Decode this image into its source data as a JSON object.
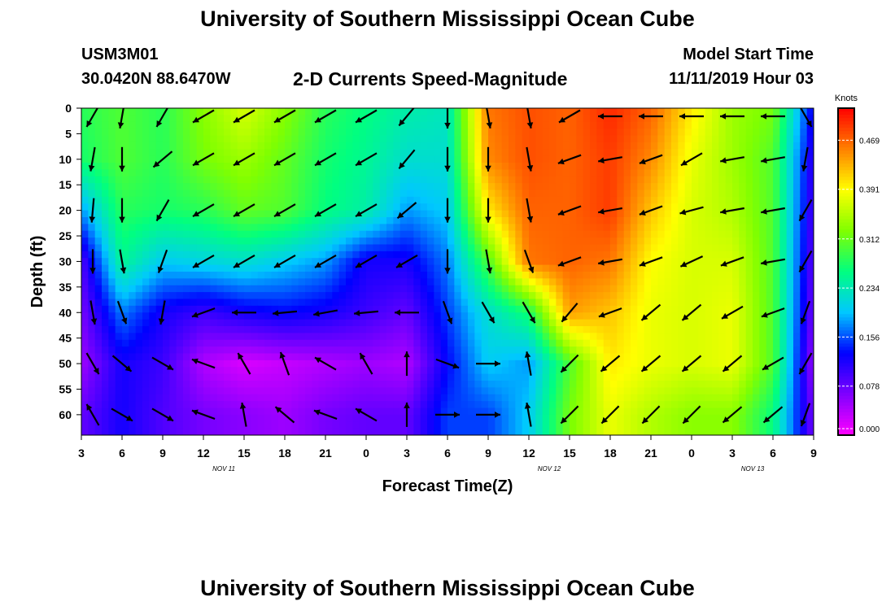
{
  "header": {
    "title": "University of Southern Mississippi Ocean Cube",
    "station_id": "USM3M01",
    "coordinates": "30.0420N 88.6470W",
    "subtitle": "2-D Currents Speed-Magnitude",
    "model_start_label": "Model Start Time",
    "model_start_value": "11/11/2019 Hour 03"
  },
  "footer": {
    "title": "University of Southern Mississippi Ocean Cube"
  },
  "chart_data": {
    "type": "heatmap",
    "title": "2-D Currents Speed-Magnitude",
    "xlabel": "Forecast Time(Z)",
    "ylabel": "Depth (ft)",
    "x_tick_labels": [
      "3",
      "6",
      "9",
      "12",
      "15",
      "18",
      "21",
      "0",
      "3",
      "6",
      "9",
      "12",
      "15",
      "18",
      "21",
      "0",
      "3",
      "6",
      "9"
    ],
    "x_date_labels": [
      {
        "label": "NOV  11",
        "at_tick_index": 3.5
      },
      {
        "label": "NOV  12",
        "at_tick_index": 11.5
      },
      {
        "label": "NOV  13",
        "at_tick_index": 16.5
      }
    ],
    "y_tick_labels": [
      "0",
      "5",
      "10",
      "15",
      "20",
      "25",
      "30",
      "35",
      "40",
      "45",
      "50",
      "55",
      "60"
    ],
    "ylim": [
      0,
      64
    ],
    "y_inverted": true,
    "colorbar": {
      "unit": "Knots",
      "tick_labels": [
        "0.469",
        "0.391",
        "0.312",
        "0.234",
        "0.156",
        "0.078",
        "0.000"
      ],
      "range": [
        0.0,
        0.52
      ],
      "colors": [
        "#ff00ff",
        "#8000ff",
        "#0000ff",
        "#00c8ff",
        "#00ff80",
        "#80ff00",
        "#ffff00",
        "#ff8000",
        "#ff0000"
      ]
    },
    "time_hours": [
      0,
      3,
      6,
      9,
      12,
      15,
      18,
      21,
      24,
      27,
      30,
      33,
      36,
      39,
      42,
      45,
      48,
      51,
      54
    ],
    "depth_ft": [
      0,
      10,
      20,
      30,
      40,
      50,
      60
    ],
    "speed_knots": [
      [
        0.28,
        0.3,
        0.28,
        0.33,
        0.37,
        0.33,
        0.28,
        0.26,
        0.24,
        0.23,
        0.46,
        0.48,
        0.47,
        0.5,
        0.47,
        0.4,
        0.34,
        0.32,
        0.12
      ],
      [
        0.27,
        0.3,
        0.28,
        0.32,
        0.34,
        0.31,
        0.27,
        0.25,
        0.22,
        0.22,
        0.45,
        0.48,
        0.47,
        0.49,
        0.45,
        0.38,
        0.34,
        0.3,
        0.1
      ],
      [
        0.18,
        0.28,
        0.27,
        0.28,
        0.31,
        0.3,
        0.26,
        0.24,
        0.18,
        0.2,
        0.4,
        0.47,
        0.47,
        0.49,
        0.42,
        0.37,
        0.35,
        0.3,
        0.09
      ],
      [
        0.09,
        0.25,
        0.2,
        0.21,
        0.22,
        0.2,
        0.18,
        0.12,
        0.12,
        0.17,
        0.3,
        0.46,
        0.47,
        0.46,
        0.39,
        0.37,
        0.37,
        0.3,
        0.08
      ],
      [
        0.07,
        0.17,
        0.12,
        0.1,
        0.12,
        0.13,
        0.12,
        0.1,
        0.08,
        0.15,
        0.22,
        0.27,
        0.44,
        0.42,
        0.38,
        0.37,
        0.38,
        0.3,
        0.07
      ],
      [
        0.05,
        0.12,
        0.1,
        0.04,
        0.02,
        0.03,
        0.04,
        0.05,
        0.04,
        0.13,
        0.2,
        0.18,
        0.3,
        0.4,
        0.38,
        0.37,
        0.38,
        0.3,
        0.05
      ],
      [
        0.08,
        0.12,
        0.09,
        0.07,
        0.06,
        0.05,
        0.07,
        0.08,
        0.08,
        0.15,
        0.15,
        0.2,
        0.32,
        0.38,
        0.35,
        0.33,
        0.33,
        0.26,
        0.07
      ]
    ],
    "vectors": {
      "description_note": "",
      "angles_deg": [
        [
          120,
          100,
          120,
          150,
          150,
          150,
          150,
          150,
          130,
          90,
          80,
          80,
          150,
          180,
          180,
          180,
          180,
          180,
          60
        ],
        [
          100,
          90,
          140,
          150,
          150,
          150,
          150,
          150,
          130,
          90,
          90,
          80,
          160,
          170,
          160,
          150,
          170,
          170,
          100
        ],
        [
          95,
          90,
          120,
          150,
          150,
          150,
          150,
          150,
          140,
          90,
          90,
          80,
          160,
          170,
          160,
          165,
          170,
          170,
          120
        ],
        [
          90,
          80,
          110,
          150,
          150,
          150,
          150,
          150,
          150,
          90,
          80,
          70,
          160,
          170,
          160,
          155,
          160,
          170,
          120
        ],
        [
          80,
          70,
          100,
          160,
          180,
          175,
          170,
          175,
          180,
          70,
          60,
          60,
          130,
          160,
          140,
          140,
          150,
          160,
          110
        ],
        [
          60,
          40,
          30,
          200,
          240,
          250,
          210,
          240,
          270,
          20,
          0,
          260,
          135,
          140,
          140,
          140,
          140,
          150,
          120
        ],
        [
          240,
          30,
          30,
          200,
          260,
          220,
          200,
          210,
          270,
          0,
          0,
          260,
          135,
          135,
          135,
          135,
          140,
          140,
          110
        ]
      ]
    }
  }
}
